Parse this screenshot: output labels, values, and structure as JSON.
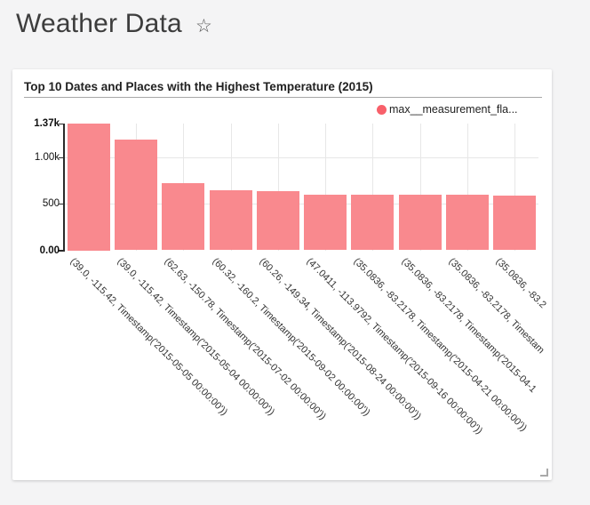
{
  "header": {
    "title": "Weather Data",
    "favorite_icon": "☆"
  },
  "icons": {
    "favorite": "star-outline-icon",
    "resize": "resize-handle-icon"
  },
  "chart_data": {
    "type": "bar",
    "title": "Top 10 Dates and Places with the Highest Temperature (2015)",
    "legend": {
      "label": "max__measurement_fla...",
      "color": "#f8606a"
    },
    "categories": [
      "(39.0, -115.42, Timestamp('2015-05-05 00:00:00'))",
      "(39.0, -115.42, Timestamp('2015-05-04 00:00:00'))",
      "(62.63, -150.78, Timestamp('2015-07-02 00:00:00'))",
      "(60.32, -160.2, Timestamp('2015-09-02 00:00:00'))",
      "(60.26, -149.34, Timestamp('2015-08-24 00:00:00'))",
      "(47.0411, -113.9792, Timestamp('2015-09-16 00:00:00'))",
      "(35.0836, -83.2178, Timestamp('2015-04-21 00:00:00'))",
      "(35.0836, -83.2178, Timestamp('2015-04-1",
      "(35.0836, -83.2178, Timestam",
      "(35.0836, -83.2"
    ],
    "values": [
      1370,
      1200,
      730,
      650,
      640,
      605,
      602,
      600,
      598,
      590
    ],
    "xlabel": "",
    "ylabel": "",
    "ylim": [
      0,
      1370
    ],
    "y_ticks": [
      {
        "label": "0.00",
        "value": 0,
        "bold": true
      },
      {
        "label": "500",
        "value": 500,
        "bold": false
      },
      {
        "label": "1.00k",
        "value": 1000,
        "bold": false
      },
      {
        "label": "1.37k",
        "value": 1370,
        "bold": true
      }
    ],
    "grid": true,
    "legend_position": "top-right",
    "colors": {
      "bar": "#f9898e",
      "gridline": "#e7e7e7",
      "axis": "#2b2b2b",
      "tick_text": "#111111"
    }
  }
}
